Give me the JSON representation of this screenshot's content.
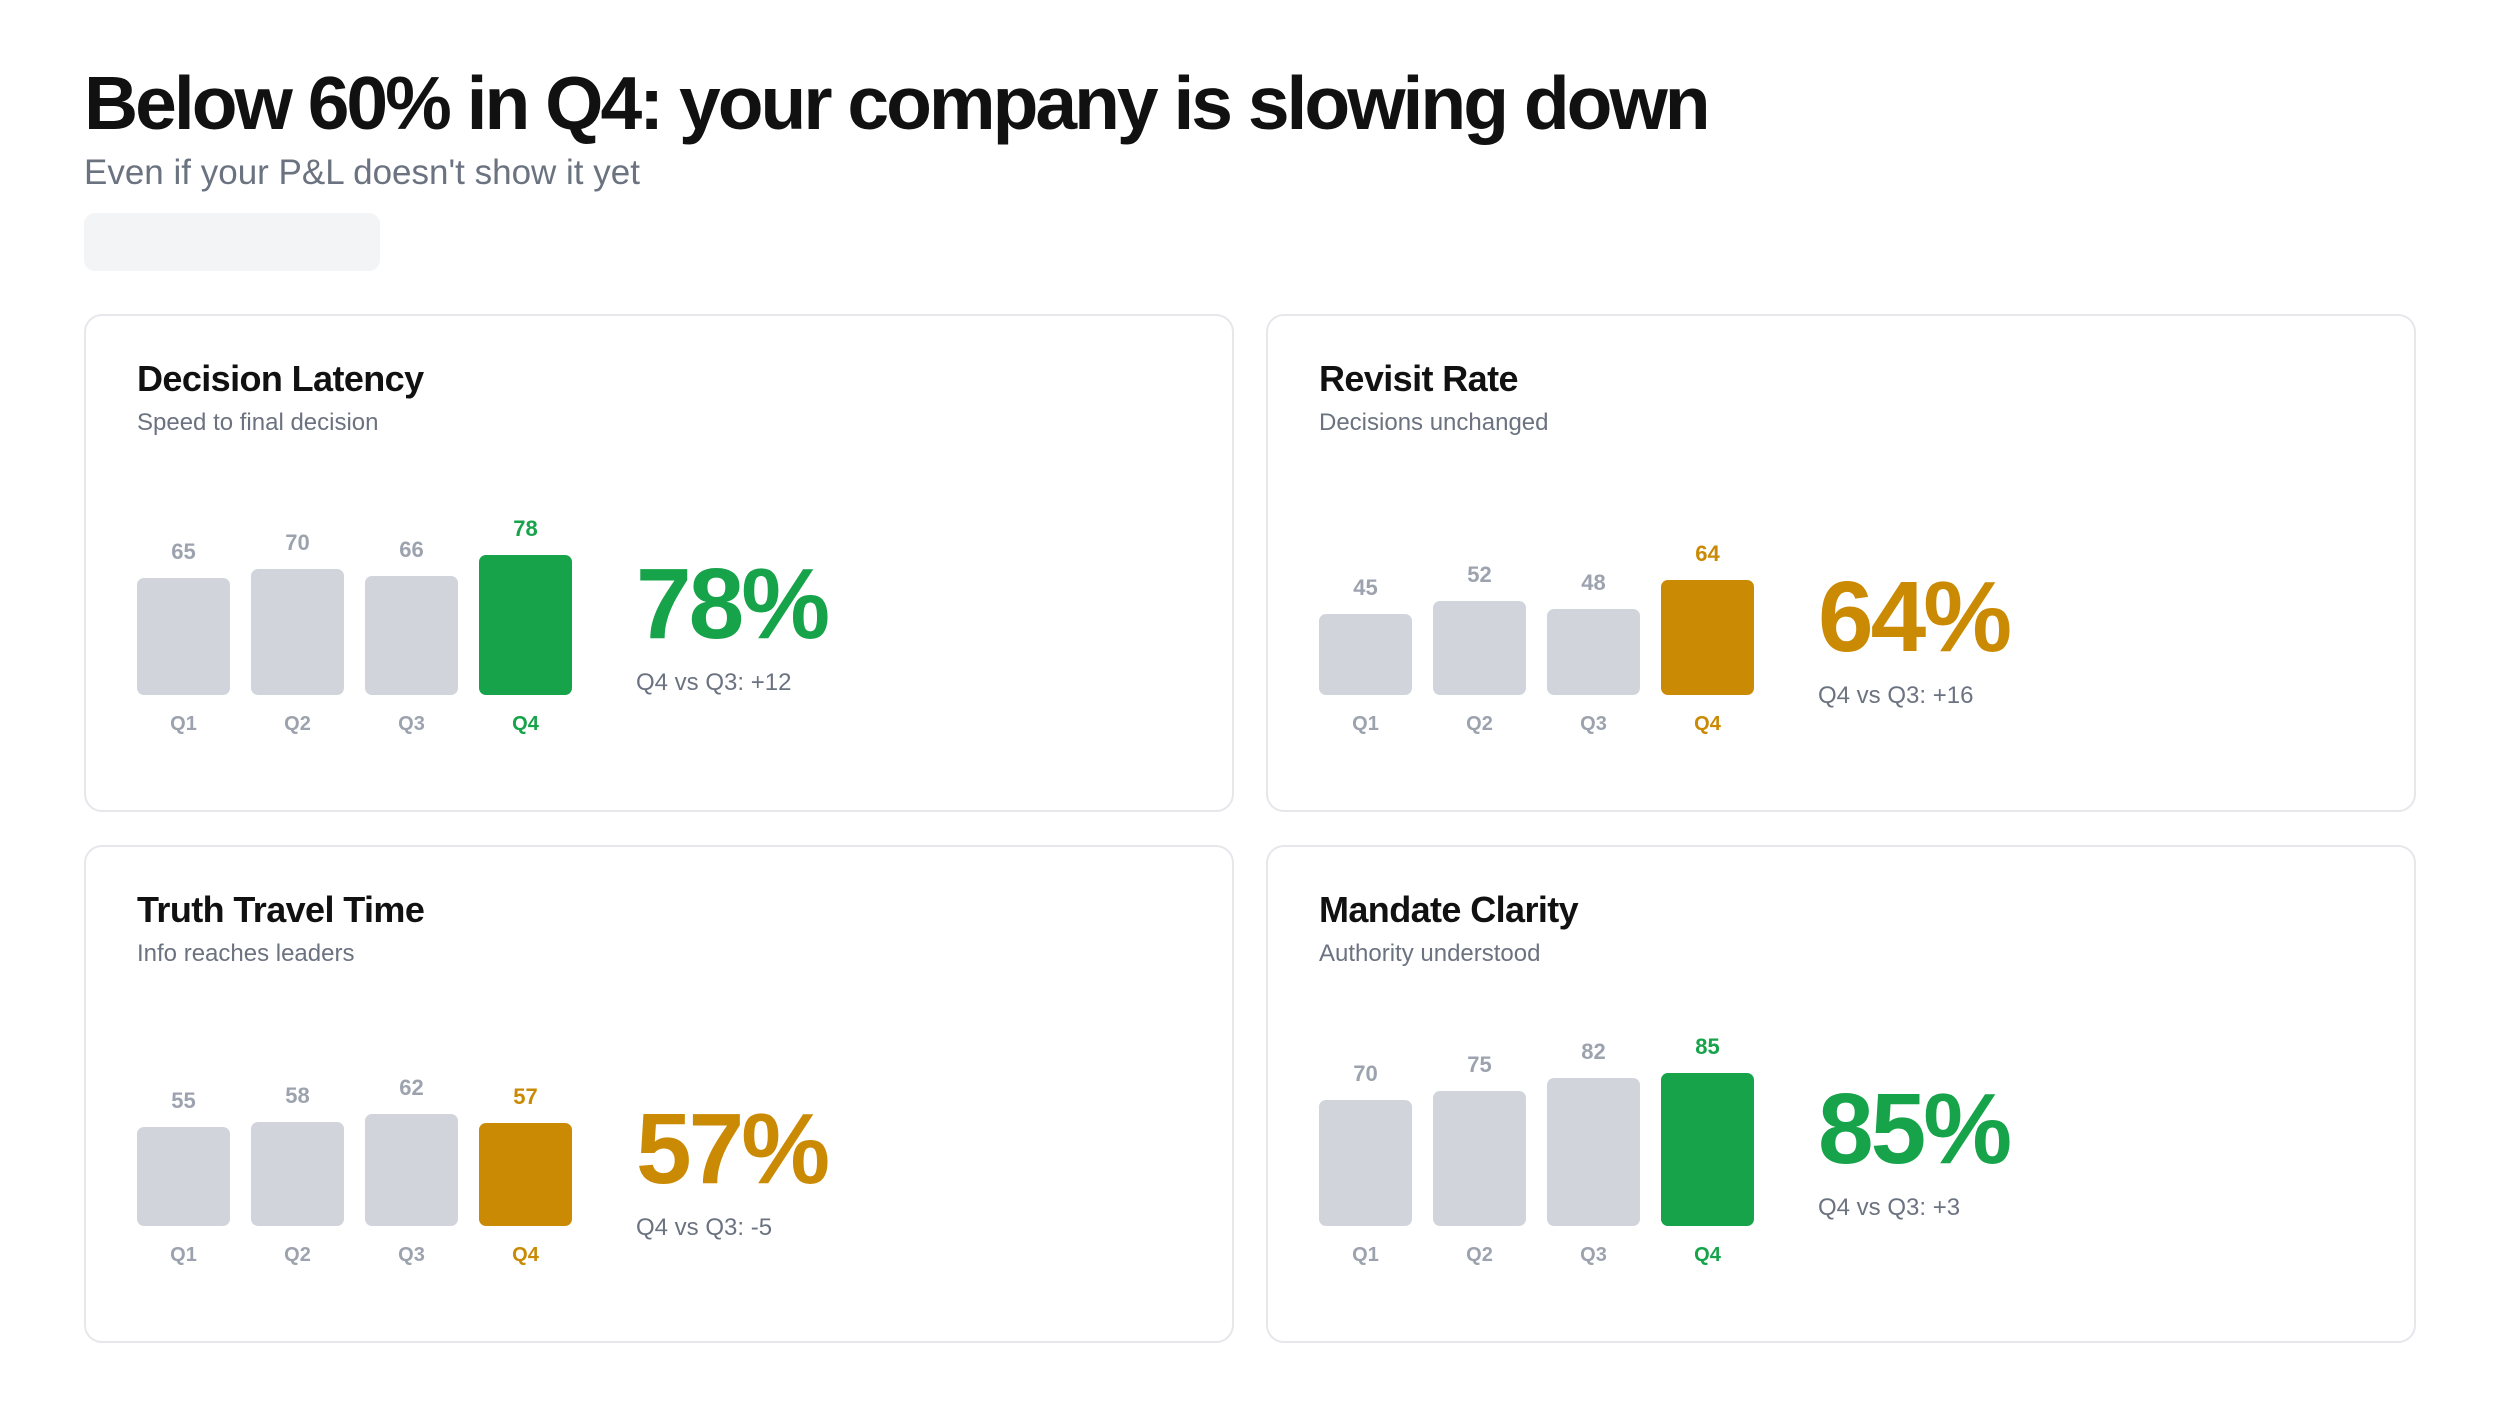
{
  "header": {
    "title": "Below 60% in Q4: your company is slowing down",
    "subtitle": "Even if your P&L doesn't show it yet"
  },
  "colors": {
    "good": "#16a34a",
    "warn": "#ca8a04",
    "bar_neutral": "#d1d5db",
    "label_neutral": "#9ca3af",
    "muted_text": "#6b7280",
    "card_border": "#e5e7eb",
    "placeholder": "#f3f4f6"
  },
  "cards": [
    {
      "title": "Decision Latency",
      "subtitle": "Speed to final decision",
      "status": "good",
      "bars": [
        {
          "label": "Q1",
          "value": "65"
        },
        {
          "label": "Q2",
          "value": "70"
        },
        {
          "label": "Q3",
          "value": "66"
        },
        {
          "label": "Q4",
          "value": "78"
        }
      ],
      "metric": "78%",
      "delta": "Q4 vs Q3: +12"
    },
    {
      "title": "Revisit Rate",
      "subtitle": "Decisions unchanged",
      "status": "warn",
      "bars": [
        {
          "label": "Q1",
          "value": "45"
        },
        {
          "label": "Q2",
          "value": "52"
        },
        {
          "label": "Q3",
          "value": "48"
        },
        {
          "label": "Q4",
          "value": "64"
        }
      ],
      "metric": "64%",
      "delta": "Q4 vs Q3: +16"
    },
    {
      "title": "Truth Travel Time",
      "subtitle": "Info reaches leaders",
      "status": "warn",
      "bars": [
        {
          "label": "Q1",
          "value": "55"
        },
        {
          "label": "Q2",
          "value": "58"
        },
        {
          "label": "Q3",
          "value": "62"
        },
        {
          "label": "Q4",
          "value": "57"
        }
      ],
      "metric": "57%",
      "delta": "Q4 vs Q3: -5"
    },
    {
      "title": "Mandate Clarity",
      "subtitle": "Authority understood",
      "status": "good",
      "bars": [
        {
          "label": "Q1",
          "value": "70"
        },
        {
          "label": "Q2",
          "value": "75"
        },
        {
          "label": "Q3",
          "value": "82"
        },
        {
          "label": "Q4",
          "value": "85"
        }
      ],
      "metric": "85%",
      "delta": "Q4 vs Q3: +3"
    }
  ],
  "chart_data": [
    {
      "type": "bar",
      "title": "Decision Latency",
      "subtitle": "Speed to final decision",
      "categories": [
        "Q1",
        "Q2",
        "Q3",
        "Q4"
      ],
      "values": [
        65,
        70,
        66,
        78
      ],
      "highlight": {
        "category": "Q4",
        "value": "78%",
        "color": "#16a34a"
      },
      "annotation": "Q4 vs Q3: +12",
      "ylim": [
        0,
        100
      ],
      "grid": false
    },
    {
      "type": "bar",
      "title": "Revisit Rate",
      "subtitle": "Decisions unchanged",
      "categories": [
        "Q1",
        "Q2",
        "Q3",
        "Q4"
      ],
      "values": [
        45,
        52,
        48,
        64
      ],
      "highlight": {
        "category": "Q4",
        "value": "64%",
        "color": "#ca8a04"
      },
      "annotation": "Q4 vs Q3: +16",
      "ylim": [
        0,
        100
      ],
      "grid": false
    },
    {
      "type": "bar",
      "title": "Truth Travel Time",
      "subtitle": "Info reaches leaders",
      "categories": [
        "Q1",
        "Q2",
        "Q3",
        "Q4"
      ],
      "values": [
        55,
        58,
        62,
        57
      ],
      "highlight": {
        "category": "Q4",
        "value": "57%",
        "color": "#ca8a04"
      },
      "annotation": "Q4 vs Q3: -5",
      "ylim": [
        0,
        100
      ],
      "grid": false
    },
    {
      "type": "bar",
      "title": "Mandate Clarity",
      "subtitle": "Authority understood",
      "categories": [
        "Q1",
        "Q2",
        "Q3",
        "Q4"
      ],
      "values": [
        70,
        75,
        82,
        85
      ],
      "highlight": {
        "category": "Q4",
        "value": "85%",
        "color": "#16a34a"
      },
      "annotation": "Q4 vs Q3: +3",
      "ylim": [
        0,
        100
      ],
      "grid": false
    }
  ]
}
